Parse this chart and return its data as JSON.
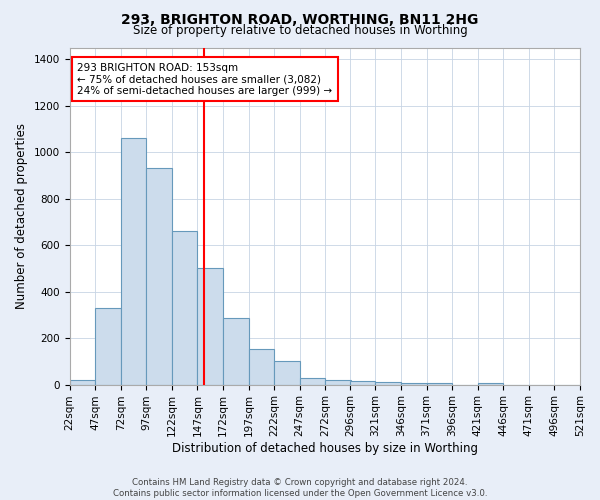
{
  "title": "293, BRIGHTON ROAD, WORTHING, BN11 2HG",
  "subtitle": "Size of property relative to detached houses in Worthing",
  "xlabel": "Distribution of detached houses by size in Worthing",
  "ylabel": "Number of detached properties",
  "bin_edges": [
    22,
    47,
    72,
    97,
    122,
    147,
    172,
    197,
    222,
    247,
    272,
    296,
    321,
    346,
    371,
    396,
    421,
    446,
    471,
    496,
    521
  ],
  "bar_heights": [
    20,
    330,
    1060,
    930,
    660,
    500,
    285,
    155,
    100,
    30,
    20,
    15,
    10,
    5,
    5,
    0,
    5,
    0,
    0,
    0
  ],
  "bar_color": "#ccdcec",
  "bar_edgecolor": "#6699bb",
  "red_line_x": 153,
  "annotation_line1": "293 BRIGHTON ROAD: 153sqm",
  "annotation_line2": "← 75% of detached houses are smaller (3,082)",
  "annotation_line3": "24% of semi-detached houses are larger (999) →",
  "annotation_box_color": "white",
  "annotation_box_edgecolor": "red",
  "red_line_color": "red",
  "ylim": [
    0,
    1450
  ],
  "yticks": [
    0,
    200,
    400,
    600,
    800,
    1000,
    1200,
    1400
  ],
  "tick_labels": [
    "22sqm",
    "47sqm",
    "72sqm",
    "97sqm",
    "122sqm",
    "147sqm",
    "172sqm",
    "197sqm",
    "222sqm",
    "247sqm",
    "272sqm",
    "296sqm",
    "321sqm",
    "346sqm",
    "371sqm",
    "396sqm",
    "421sqm",
    "446sqm",
    "471sqm",
    "496sqm",
    "521sqm"
  ],
  "footer": "Contains HM Land Registry data © Crown copyright and database right 2024.\nContains public sector information licensed under the Open Government Licence v3.0.",
  "bg_color": "#e8eef8",
  "plot_bg_color": "white",
  "grid_color": "#c8d4e4"
}
